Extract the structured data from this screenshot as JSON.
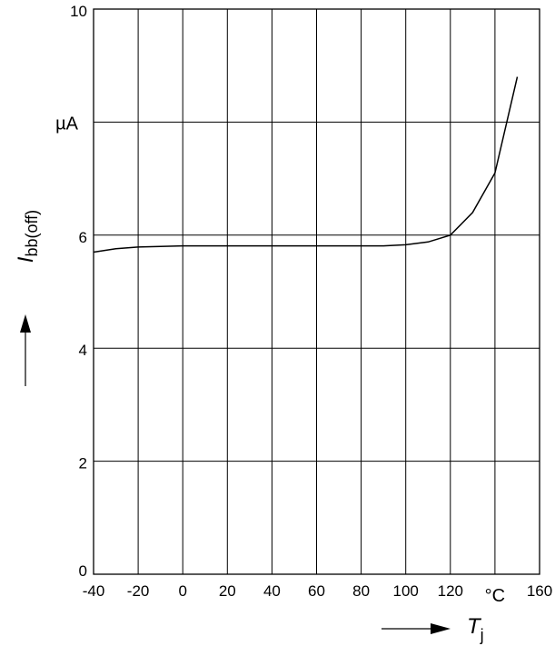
{
  "chart_data": {
    "type": "line",
    "x_tick_labels": [
      "-40",
      "-20",
      "0",
      "20",
      "40",
      "60",
      "80",
      "100",
      "120",
      "°C",
      "160"
    ],
    "y_tick_labels": [
      "0",
      "2",
      "4",
      "6",
      "µA",
      "10"
    ],
    "xlabel": {
      "symbol": "T",
      "subscript": "j"
    },
    "ylabel": {
      "symbol": "I",
      "subscript": "bb(off)"
    },
    "xlim": [
      -40,
      160
    ],
    "ylim": [
      0,
      10
    ],
    "grid": true,
    "series": [
      {
        "x": [
          -40,
          -30,
          -20,
          -10,
          0,
          10,
          20,
          30,
          40,
          50,
          60,
          70,
          80,
          90,
          100,
          110,
          120,
          130,
          140,
          150
        ],
        "y": [
          5.7,
          5.76,
          5.79,
          5.8,
          5.81,
          5.81,
          5.81,
          5.81,
          5.81,
          5.81,
          5.81,
          5.81,
          5.81,
          5.81,
          5.83,
          5.88,
          6.0,
          6.4,
          7.1,
          8.8
        ]
      }
    ]
  }
}
